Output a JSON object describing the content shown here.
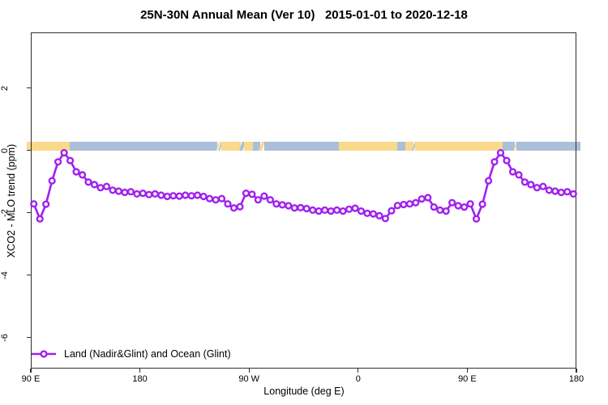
{
  "colors": {
    "series": "#A020F0",
    "marker_fill": "#FFFFFF",
    "land": "#FAD98B",
    "ocean": "#A9BFDA",
    "axis": "#2F2F2F",
    "text": "#000000"
  },
  "chart_data": {
    "type": "line",
    "title": "25N-30N Annual Mean (Ver 10)   2015-01-01 to 2020-12-18",
    "xlabel": "Longitude (deg E)",
    "ylabel": "XCO2 - MLO trend (ppm)",
    "xlim": [
      90,
      540
    ],
    "ylim": [
      -7.0,
      3.78
    ],
    "grid": false,
    "x_ticks": [
      {
        "value": 90,
        "label": "90 E"
      },
      {
        "value": 180,
        "label": "180"
      },
      {
        "value": 270,
        "label": "90 W"
      },
      {
        "value": 360,
        "label": "0"
      },
      {
        "value": 450,
        "label": "90 E"
      },
      {
        "value": 540,
        "label": "180"
      }
    ],
    "y_ticks": [
      {
        "value": 2,
        "label": "2"
      },
      {
        "value": 0,
        "label": "0"
      },
      {
        "value": -2,
        "label": "-2"
      },
      {
        "value": -4,
        "label": "-4"
      },
      {
        "value": -6,
        "label": "-6"
      }
    ],
    "legend": {
      "label": "Land (Nadir&Glint) and Ocean (Glint)",
      "position": "bottom-left",
      "marker": "open-circle-on-line"
    },
    "surface_band": {
      "description": "land/ocean indicator strip just above y=0",
      "y_range": [
        -0.015,
        0.27
      ],
      "segments": [
        {
          "type": "land",
          "from": 86.5,
          "to": 122
        },
        {
          "type": "ocean",
          "from": 122,
          "to": 244
        },
        {
          "type": "land",
          "from": 244,
          "to": 245.5
        },
        {
          "type": "ocean",
          "from": 245.5,
          "to": 247
        },
        {
          "type": "land",
          "from": 247,
          "to": 263
        },
        {
          "type": "ocean",
          "from": 263,
          "to": 266
        },
        {
          "type": "land",
          "from": 266,
          "to": 273.5
        },
        {
          "type": "ocean",
          "from": 273.5,
          "to": 279.5
        },
        {
          "type": "land",
          "from": 279.5,
          "to": 282.5
        },
        {
          "type": "ocean",
          "from": 282.5,
          "to": 344
        },
        {
          "type": "land",
          "from": 344,
          "to": 392
        },
        {
          "type": "ocean",
          "from": 392,
          "to": 399
        },
        {
          "type": "land",
          "from": 399,
          "to": 405.5
        },
        {
          "type": "ocean",
          "from": 405.5,
          "to": 407
        },
        {
          "type": "land",
          "from": 407,
          "to": 479
        },
        {
          "type": "ocean",
          "from": 479,
          "to": 489
        },
        {
          "type": "land",
          "from": 489,
          "to": 490.5
        },
        {
          "type": "ocean",
          "from": 490.5,
          "to": 543.5
        }
      ]
    },
    "series": [
      {
        "name": "Land (Nadir&Glint) and Ocean (Glint)",
        "x": [
          92.5,
          97.5,
          102.5,
          107.5,
          112.5,
          117.5,
          122.5,
          127.5,
          132.5,
          137.5,
          142.5,
          147.5,
          152.5,
          157.5,
          162.5,
          167.5,
          172.5,
          177.5,
          182.5,
          187.5,
          192.5,
          197.5,
          202.5,
          207.5,
          212.5,
          217.5,
          222.5,
          227.5,
          232.5,
          237.5,
          242.5,
          247.5,
          252.5,
          257.5,
          262.5,
          267.5,
          272.5,
          277.5,
          282.5,
          287.5,
          292.5,
          297.5,
          302.5,
          307.5,
          312.5,
          317.5,
          322.5,
          327.5,
          332.5,
          337.5,
          342.5,
          347.5,
          352.5,
          357.5,
          362.5,
          367.5,
          372.5,
          377.5,
          382.5,
          387.5,
          392.5,
          397.5,
          402.5,
          407.5,
          412.5,
          417.5,
          422.5,
          427.5,
          432.5,
          437.5,
          442.5,
          447.5,
          452.5,
          457.5,
          462.5,
          467.5,
          472.5,
          477.5,
          482.5,
          487.5,
          492.5,
          497.5,
          502.5,
          507.5,
          512.5,
          517.5,
          522.5,
          527.5,
          532.5,
          537.5
        ],
        "y": [
          -1.72,
          -2.2,
          -1.73,
          -0.98,
          -0.37,
          -0.08,
          -0.33,
          -0.69,
          -0.79,
          -1.02,
          -1.1,
          -1.2,
          -1.16,
          -1.28,
          -1.31,
          -1.35,
          -1.33,
          -1.4,
          -1.38,
          -1.42,
          -1.4,
          -1.44,
          -1.48,
          -1.46,
          -1.47,
          -1.44,
          -1.46,
          -1.44,
          -1.48,
          -1.55,
          -1.59,
          -1.55,
          -1.72,
          -1.85,
          -1.81,
          -1.38,
          -1.41,
          -1.59,
          -1.47,
          -1.59,
          -1.72,
          -1.75,
          -1.78,
          -1.85,
          -1.84,
          -1.87,
          -1.92,
          -1.95,
          -1.92,
          -1.95,
          -1.92,
          -1.95,
          -1.89,
          -1.86,
          -1.95,
          -2.02,
          -2.04,
          -2.1,
          -2.19,
          -1.94,
          -1.77,
          -1.74,
          -1.72,
          -1.68,
          -1.56,
          -1.52,
          -1.82,
          -1.92,
          -1.95,
          -1.68,
          -1.78,
          -1.82,
          -1.72,
          -2.2,
          -1.73,
          -0.98,
          -0.37,
          -0.08,
          -0.33,
          -0.69,
          -0.79,
          -1.02,
          -1.1,
          -1.2,
          -1.16,
          -1.28,
          -1.31,
          -1.35,
          -1.33,
          -1.4
        ]
      }
    ]
  }
}
